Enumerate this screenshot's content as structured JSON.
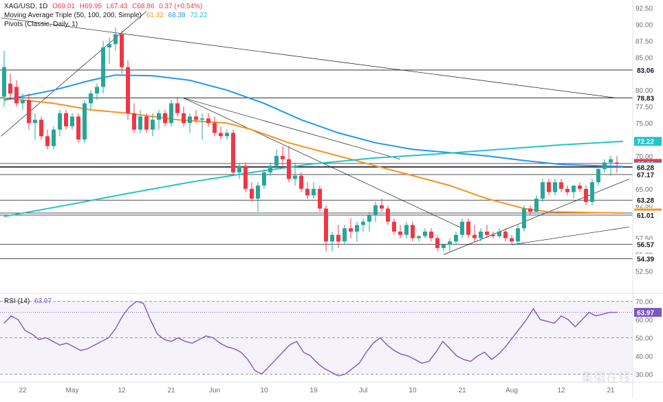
{
  "header": {
    "symbol": "XAG/USD, 1D",
    "open": "O69.01",
    "high": "H69.95",
    "low": "L67.43",
    "close": "C68.86",
    "change": "0.37 (+0.54%)",
    "ma_label": "Moving Average Triple (50, 100, 200, Simple)",
    "ma50_value": "61.32",
    "ma100_value": "68.38",
    "ma200_value": "72.22",
    "pivots_label": "Pivots (Classic, Daily, 1)",
    "rsi_label": "RSI (14)",
    "rsi_value": "63.97"
  },
  "colors": {
    "up": "#26a69a",
    "down": "#f23645",
    "ma50": "#f7931a",
    "ma100": "#2196f3",
    "ma200": "#22c3c9",
    "rsi": "#7e57c2",
    "level_line": "#131722",
    "trend_line": "#131722"
  },
  "chart_data": [
    {
      "type": "candlestick",
      "title": "XAG/USD, 1D",
      "x_tick_labels": [
        "22",
        "May",
        "12",
        "21",
        "Jun",
        "10",
        "19",
        "Jul",
        "10",
        "21",
        "Aug",
        "12",
        "21"
      ],
      "y_tick_labels": [
        "92.50",
        "90.00",
        "87.50",
        "85.00",
        "80.00",
        "77.50",
        "75.00",
        "70.00",
        "65.00",
        "62.50",
        "57.50",
        "55.00",
        "52.50"
      ],
      "ylim": [
        51.5,
        93.5
      ],
      "candles": [
        {
          "o": 79.0,
          "h": 86.0,
          "l": 77.5,
          "c": 83.5
        },
        {
          "o": 81.0,
          "h": 82.5,
          "l": 78.5,
          "c": 79.5
        },
        {
          "o": 80.5,
          "h": 81.5,
          "l": 77.5,
          "c": 78.0
        },
        {
          "o": 78.0,
          "h": 79.5,
          "l": 77.0,
          "c": 78.5
        },
        {
          "o": 78.5,
          "h": 79.5,
          "l": 74.0,
          "c": 75.0
        },
        {
          "o": 75.0,
          "h": 76.5,
          "l": 72.5,
          "c": 75.5
        },
        {
          "o": 75.5,
          "h": 76.0,
          "l": 72.5,
          "c": 73.0
        },
        {
          "o": 73.0,
          "h": 74.0,
          "l": 71.0,
          "c": 71.5
        },
        {
          "o": 71.5,
          "h": 74.5,
          "l": 71.0,
          "c": 74.0
        },
        {
          "o": 74.0,
          "h": 77.0,
          "l": 73.0,
          "c": 76.5
        },
        {
          "o": 76.5,
          "h": 77.0,
          "l": 74.0,
          "c": 74.5
        },
        {
          "o": 74.5,
          "h": 76.5,
          "l": 74.0,
          "c": 76.0
        },
        {
          "o": 76.0,
          "h": 76.5,
          "l": 72.0,
          "c": 72.5
        },
        {
          "o": 72.5,
          "h": 78.5,
          "l": 72.0,
          "c": 78.0
        },
        {
          "o": 78.0,
          "h": 80.0,
          "l": 77.0,
          "c": 79.5
        },
        {
          "o": 79.5,
          "h": 81.0,
          "l": 78.5,
          "c": 80.5
        },
        {
          "o": 80.5,
          "h": 87.5,
          "l": 79.5,
          "c": 86.5
        },
        {
          "o": 86.5,
          "h": 88.0,
          "l": 84.0,
          "c": 87.0
        },
        {
          "o": 87.0,
          "h": 89.5,
          "l": 86.0,
          "c": 88.5
        },
        {
          "o": 88.5,
          "h": 89.0,
          "l": 82.5,
          "c": 83.5
        },
        {
          "o": 83.5,
          "h": 84.5,
          "l": 75.5,
          "c": 76.5
        },
        {
          "o": 76.5,
          "h": 78.0,
          "l": 73.5,
          "c": 74.0
        },
        {
          "o": 74.0,
          "h": 77.0,
          "l": 73.5,
          "c": 76.0
        },
        {
          "o": 76.0,
          "h": 76.5,
          "l": 73.5,
          "c": 74.0
        },
        {
          "o": 74.0,
          "h": 76.5,
          "l": 73.0,
          "c": 75.5
        },
        {
          "o": 75.5,
          "h": 77.0,
          "l": 74.0,
          "c": 76.5
        },
        {
          "o": 76.5,
          "h": 77.0,
          "l": 74.5,
          "c": 75.0
        },
        {
          "o": 75.0,
          "h": 78.5,
          "l": 74.5,
          "c": 78.0
        },
        {
          "o": 78.0,
          "h": 79.0,
          "l": 76.0,
          "c": 76.5
        },
        {
          "o": 76.5,
          "h": 77.5,
          "l": 74.5,
          "c": 75.0
        },
        {
          "o": 75.0,
          "h": 76.5,
          "l": 73.5,
          "c": 76.0
        },
        {
          "o": 76.0,
          "h": 77.0,
          "l": 75.0,
          "c": 75.5
        },
        {
          "o": 75.5,
          "h": 76.5,
          "l": 72.5,
          "c": 75.7
        },
        {
          "o": 75.7,
          "h": 76.5,
          "l": 74.5,
          "c": 75.0
        },
        {
          "o": 75.0,
          "h": 76.0,
          "l": 73.0,
          "c": 73.5
        },
        {
          "o": 73.5,
          "h": 74.5,
          "l": 72.5,
          "c": 73.0
        },
        {
          "o": 73.0,
          "h": 74.0,
          "l": 72.5,
          "c": 73.5
        },
        {
          "o": 73.5,
          "h": 74.0,
          "l": 67.0,
          "c": 67.5
        },
        {
          "o": 67.5,
          "h": 69.0,
          "l": 66.5,
          "c": 68.5
        },
        {
          "o": 68.5,
          "h": 69.0,
          "l": 64.5,
          "c": 65.0
        },
        {
          "o": 65.0,
          "h": 66.0,
          "l": 63.0,
          "c": 63.5
        },
        {
          "o": 63.5,
          "h": 66.0,
          "l": 61.5,
          "c": 65.5
        },
        {
          "o": 65.5,
          "h": 68.0,
          "l": 65.0,
          "c": 67.5
        },
        {
          "o": 67.5,
          "h": 69.0,
          "l": 67.0,
          "c": 68.5
        },
        {
          "o": 68.5,
          "h": 71.0,
          "l": 68.0,
          "c": 70.0
        },
        {
          "o": 70.0,
          "h": 71.5,
          "l": 68.5,
          "c": 69.5
        },
        {
          "o": 69.5,
          "h": 71.5,
          "l": 66.0,
          "c": 66.5
        },
        {
          "o": 66.5,
          "h": 69.0,
          "l": 65.5,
          "c": 67.0
        },
        {
          "o": 67.0,
          "h": 67.5,
          "l": 64.5,
          "c": 65.0
        },
        {
          "o": 65.0,
          "h": 66.0,
          "l": 63.5,
          "c": 64.0
        },
        {
          "o": 64.0,
          "h": 66.0,
          "l": 63.5,
          "c": 65.0
        },
        {
          "o": 65.0,
          "h": 65.5,
          "l": 61.5,
          "c": 62.0
        },
        {
          "o": 62.0,
          "h": 62.5,
          "l": 55.5,
          "c": 57.0
        },
        {
          "o": 57.0,
          "h": 58.5,
          "l": 55.5,
          "c": 58.0
        },
        {
          "o": 58.0,
          "h": 59.5,
          "l": 56.0,
          "c": 57.0
        },
        {
          "o": 57.0,
          "h": 59.5,
          "l": 56.5,
          "c": 59.0
        },
        {
          "o": 59.0,
          "h": 60.5,
          "l": 57.5,
          "c": 58.5
        },
        {
          "o": 58.5,
          "h": 60.0,
          "l": 57.0,
          "c": 59.5
        },
        {
          "o": 59.5,
          "h": 60.5,
          "l": 58.5,
          "c": 60.0
        },
        {
          "o": 60.0,
          "h": 61.5,
          "l": 58.5,
          "c": 61.0
        },
        {
          "o": 61.0,
          "h": 63.0,
          "l": 60.0,
          "c": 62.5
        },
        {
          "o": 62.5,
          "h": 63.5,
          "l": 61.5,
          "c": 62.0
        },
        {
          "o": 62.0,
          "h": 62.5,
          "l": 59.5,
          "c": 60.0
        },
        {
          "o": 60.0,
          "h": 60.5,
          "l": 58.0,
          "c": 58.5
        },
        {
          "o": 58.5,
          "h": 59.5,
          "l": 57.5,
          "c": 58.0
        },
        {
          "o": 58.0,
          "h": 60.0,
          "l": 57.5,
          "c": 59.5
        },
        {
          "o": 59.5,
          "h": 60.0,
          "l": 57.0,
          "c": 57.5
        },
        {
          "o": 57.5,
          "h": 58.0,
          "l": 57.0,
          "c": 57.8
        },
        {
          "o": 57.8,
          "h": 59.0,
          "l": 57.5,
          "c": 58.5
        },
        {
          "o": 58.5,
          "h": 59.0,
          "l": 57.0,
          "c": 57.5
        },
        {
          "o": 57.5,
          "h": 58.0,
          "l": 55.5,
          "c": 56.0
        },
        {
          "o": 56.0,
          "h": 56.5,
          "l": 55.5,
          "c": 56.5
        },
        {
          "o": 56.5,
          "h": 57.5,
          "l": 55.5,
          "c": 57.0
        },
        {
          "o": 57.0,
          "h": 58.5,
          "l": 56.5,
          "c": 58.0
        },
        {
          "o": 58.0,
          "h": 60.5,
          "l": 57.5,
          "c": 60.0
        },
        {
          "o": 60.0,
          "h": 60.5,
          "l": 57.5,
          "c": 58.0
        },
        {
          "o": 58.0,
          "h": 59.5,
          "l": 57.0,
          "c": 57.5
        },
        {
          "o": 57.5,
          "h": 59.0,
          "l": 57.0,
          "c": 58.5
        },
        {
          "o": 58.5,
          "h": 59.5,
          "l": 57.5,
          "c": 58.0
        },
        {
          "o": 58.0,
          "h": 58.5,
          "l": 57.5,
          "c": 57.8
        },
        {
          "o": 57.8,
          "h": 59.0,
          "l": 57.5,
          "c": 58.5
        },
        {
          "o": 58.5,
          "h": 59.0,
          "l": 57.0,
          "c": 57.5
        },
        {
          "o": 57.5,
          "h": 58.0,
          "l": 56.5,
          "c": 57.0
        },
        {
          "o": 57.0,
          "h": 59.5,
          "l": 56.5,
          "c": 59.0
        },
        {
          "o": 59.0,
          "h": 62.5,
          "l": 58.5,
          "c": 62.0
        },
        {
          "o": 62.0,
          "h": 62.5,
          "l": 61.0,
          "c": 61.5
        },
        {
          "o": 61.5,
          "h": 64.0,
          "l": 61.5,
          "c": 63.5
        },
        {
          "o": 63.5,
          "h": 66.5,
          "l": 63.0,
          "c": 66.0
        },
        {
          "o": 66.0,
          "h": 66.5,
          "l": 64.0,
          "c": 64.5
        },
        {
          "o": 64.5,
          "h": 66.5,
          "l": 64.0,
          "c": 66.0
        },
        {
          "o": 66.0,
          "h": 66.5,
          "l": 64.5,
          "c": 65.0
        },
        {
          "o": 65.0,
          "h": 65.5,
          "l": 64.0,
          "c": 64.5
        },
        {
          "o": 64.5,
          "h": 65.5,
          "l": 63.5,
          "c": 65.5
        },
        {
          "o": 65.5,
          "h": 66.0,
          "l": 64.5,
          "c": 65.0
        },
        {
          "o": 65.0,
          "h": 65.5,
          "l": 62.5,
          "c": 63.0
        },
        {
          "o": 63.0,
          "h": 66.5,
          "l": 62.5,
          "c": 66.0
        },
        {
          "o": 66.0,
          "h": 68.5,
          "l": 65.5,
          "c": 68.0
        },
        {
          "o": 68.0,
          "h": 69.5,
          "l": 67.5,
          "c": 69.0
        },
        {
          "o": 69.0,
          "h": 70.0,
          "l": 67.0,
          "c": 69.5
        },
        {
          "o": 69.0,
          "h": 69.95,
          "l": 67.43,
          "c": 68.86
        }
      ],
      "moving_averages": [
        {
          "name": "MA 50",
          "last": 61.32,
          "points": [
            [
              0,
              78.8
            ],
            [
              8,
              78
            ],
            [
              14,
              77
            ],
            [
              20,
              76.5
            ],
            [
              28,
              75.5
            ],
            [
              36,
              75
            ],
            [
              40,
              74
            ],
            [
              46,
              72
            ],
            [
              54,
              70
            ],
            [
              60,
              68.5
            ],
            [
              66,
              67
            ],
            [
              72,
              65.5
            ],
            [
              78,
              63.5
            ],
            [
              84,
              62
            ],
            [
              88,
              61.5
            ],
            [
              100,
              61.32
            ]
          ]
        },
        {
          "name": "MA 100",
          "last": 68.38,
          "points": [
            [
              0,
              78.5
            ],
            [
              8,
              80
            ],
            [
              14,
              81.5
            ],
            [
              18,
              82.3
            ],
            [
              24,
              82.2
            ],
            [
              30,
              81.5
            ],
            [
              36,
              80
            ],
            [
              42,
              78
            ],
            [
              48,
              75.5
            ],
            [
              54,
              73.5
            ],
            [
              60,
              72
            ],
            [
              66,
              71
            ],
            [
              72,
              70.5
            ],
            [
              78,
              70
            ],
            [
              84,
              69.3
            ],
            [
              90,
              68.7
            ],
            [
              100,
              68.38
            ]
          ]
        },
        {
          "name": "MA 200",
          "last": 72.22,
          "points": [
            [
              0,
              60.8
            ],
            [
              10,
              62.5
            ],
            [
              20,
              64.3
            ],
            [
              30,
              66
            ],
            [
              40,
              67.5
            ],
            [
              50,
              68.8
            ],
            [
              60,
              69.7
            ],
            [
              70,
              70.3
            ],
            [
              80,
              71
            ],
            [
              90,
              71.7
            ],
            [
              100,
              72.22
            ]
          ]
        }
      ],
      "levels": [
        83.06,
        78.83,
        68.86,
        68.38,
        68.28,
        67.17,
        63.28,
        61.32,
        61.01,
        56.57,
        54.39
      ],
      "pivot_labels": [
        {
          "value": 83.06,
          "label": "83.06"
        },
        {
          "value": 78.83,
          "label": "78.83"
        },
        {
          "value": 72.22,
          "label": "72.22"
        },
        {
          "value": 68.86,
          "label": "68.86"
        },
        {
          "value": 68.38,
          "label": "68.38"
        },
        {
          "value": 68.28,
          "label": "68.28"
        },
        {
          "value": 67.17,
          "label": "67.17"
        },
        {
          "value": 63.28,
          "label": "63.28"
        },
        {
          "value": 61.32,
          "label": "61.32"
        },
        {
          "value": 61.01,
          "label": "61.01"
        },
        {
          "value": 56.57,
          "label": "56.57"
        },
        {
          "value": 54.39,
          "label": "54.39"
        }
      ],
      "trendlines": [
        {
          "from": [
            -0.5,
            73
          ],
          "to": [
            23,
            92
          ]
        },
        {
          "from": [
            -0.5,
            91
          ],
          "to": [
            99,
            78.8
          ]
        },
        {
          "from": [
            29,
            78.8
          ],
          "to": [
            64,
            69.5
          ]
        },
        {
          "from": [
            29,
            78.8
          ],
          "to": [
            74,
            59
          ]
        },
        {
          "from": [
            71,
            55
          ],
          "to": [
            101,
            66.5
          ]
        },
        {
          "from": [
            82,
            56.5
          ],
          "to": [
            101,
            59.2
          ]
        }
      ]
    },
    {
      "type": "line",
      "title": "RSI (14)",
      "y_tick_labels": [
        "70.00",
        "60.00",
        "50.00",
        "40.00",
        "30.00"
      ],
      "ylim": [
        29,
        71
      ],
      "series": [
        {
          "name": "RSI (14)",
          "values": [
            58,
            62,
            60,
            54,
            52,
            49,
            50,
            48,
            46,
            47,
            45,
            43,
            44,
            46,
            48,
            50,
            55,
            62,
            67,
            70,
            69,
            60,
            52,
            49,
            48,
            50,
            48,
            47,
            49,
            51,
            50,
            47,
            45,
            44,
            42,
            38,
            32,
            30,
            34,
            38,
            42,
            46,
            48,
            42,
            40,
            36,
            33,
            31,
            29,
            30,
            33,
            36,
            42,
            47,
            50,
            46,
            43,
            41,
            40,
            38,
            36,
            37,
            42,
            48,
            44,
            40,
            38,
            37,
            40,
            42,
            38,
            41,
            45,
            50,
            55,
            60,
            66,
            60,
            59,
            58,
            62,
            60,
            56,
            60,
            64,
            62,
            63,
            64,
            63.97
          ]
        }
      ],
      "levels": [
        70,
        50,
        30
      ]
    }
  ],
  "watermark": "集徽在线"
}
